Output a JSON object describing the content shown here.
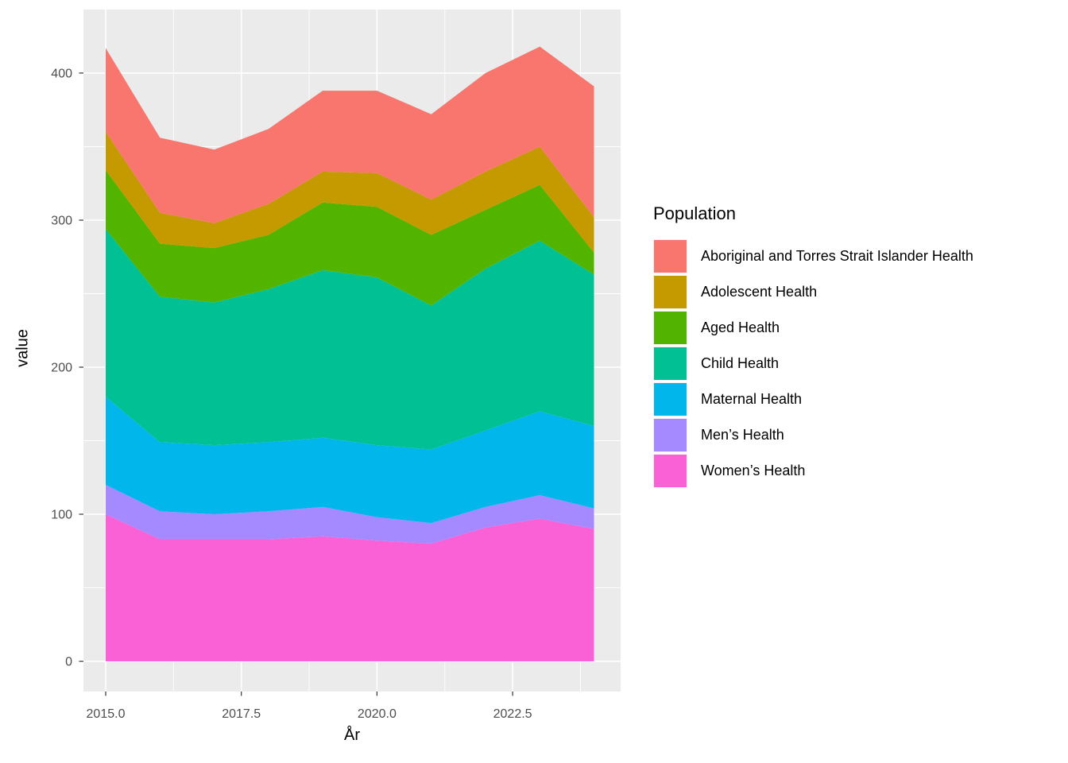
{
  "figure": {
    "background": "#FFFFFF",
    "panel_background": "#EBEBEB",
    "grid_color": "#FFFFFF",
    "tick_mark_color": "#333333",
    "tick_label_color": "#4D4D4D",
    "axis_title_color": "#000000"
  },
  "chart_data": {
    "type": "area",
    "stacked": true,
    "title": "",
    "xlabel": "År",
    "ylabel": "value",
    "legend_title": "Population",
    "legend_position": "right",
    "grid": true,
    "x": [
      2015,
      2016,
      2017,
      2018,
      2019,
      2020,
      2021,
      2022,
      2023,
      2024
    ],
    "xlim": [
      2014.59,
      2024.49
    ],
    "ylim": [
      -20.5,
      443.2
    ],
    "x_major_ticks": [
      2015.0,
      2017.5,
      2020.0,
      2022.5
    ],
    "x_major_labels": [
      "2015.0",
      "2017.5",
      "2020.0",
      "2022.5"
    ],
    "x_minor_ticks": [
      2016.25,
      2018.75,
      2021.25,
      2023.75
    ],
    "y_major_ticks": [
      0,
      100,
      200,
      300,
      400
    ],
    "y_major_labels": [
      "0",
      "100",
      "200",
      "300",
      "400"
    ],
    "y_minor_ticks": [
      50,
      150,
      250,
      350
    ],
    "stack_note": "series listed in legend order; first series is the top band, last series is the bottom band",
    "series": [
      {
        "name": "Aboriginal and Torres Strait Islander Health",
        "color": "#F8766D",
        "values": [
          57,
          51,
          50,
          51,
          55,
          56,
          58,
          67,
          68,
          89
        ]
      },
      {
        "name": "Adolescent Health",
        "color": "#C49A00",
        "values": [
          26,
          21,
          17,
          21,
          21,
          23,
          24,
          26,
          26,
          24
        ]
      },
      {
        "name": "Aged Health",
        "color": "#53B400",
        "values": [
          40,
          36,
          37,
          37,
          46,
          48,
          48,
          40,
          38,
          15
        ]
      },
      {
        "name": "Child Health",
        "color": "#00C094",
        "values": [
          114,
          99,
          97,
          104,
          114,
          114,
          98,
          110,
          116,
          103
        ]
      },
      {
        "name": "Maternal Health",
        "color": "#00B6EB",
        "values": [
          60,
          47,
          47,
          47,
          47,
          49,
          50,
          52,
          57,
          56
        ]
      },
      {
        "name": "Men’s Health",
        "color": "#A58AFF",
        "values": [
          20,
          19,
          17,
          19,
          20,
          16,
          14,
          14,
          16,
          14
        ]
      },
      {
        "name": "Women’s Health",
        "color": "#FB61D7",
        "values": [
          100,
          83,
          83,
          83,
          85,
          82,
          80,
          91,
          97,
          90
        ]
      }
    ],
    "totals": [
      417,
      356,
      348,
      362,
      388,
      388,
      372,
      400,
      418,
      391
    ]
  }
}
